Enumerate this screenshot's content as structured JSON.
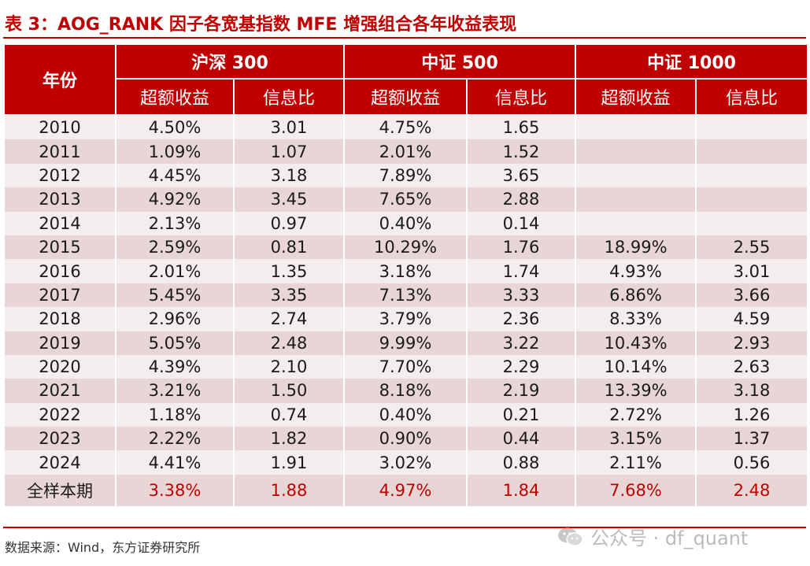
{
  "title": "表 3：AOG_RANK 因子各宽基指数 MFE 增强组合各年收益表现",
  "table": {
    "year_header": "年份",
    "groups": [
      "沪深 300",
      "中证 500",
      "中证 1000"
    ],
    "sub_headers": [
      "超额收益",
      "信息比",
      "超额收益",
      "信息比",
      "超额收益",
      "信息比"
    ],
    "rows": [
      [
        "2010",
        "4.50%",
        "3.01",
        "4.75%",
        "1.65",
        "",
        ""
      ],
      [
        "2011",
        "1.09%",
        "1.07",
        "2.01%",
        "1.52",
        "",
        ""
      ],
      [
        "2012",
        "4.45%",
        "3.18",
        "7.89%",
        "3.65",
        "",
        ""
      ],
      [
        "2013",
        "4.92%",
        "3.45",
        "7.65%",
        "2.88",
        "",
        ""
      ],
      [
        "2014",
        "2.13%",
        "0.97",
        "0.40%",
        "0.14",
        "",
        ""
      ],
      [
        "2015",
        "2.59%",
        "0.81",
        "10.29%",
        "1.76",
        "18.99%",
        "2.55"
      ],
      [
        "2016",
        "2.01%",
        "1.35",
        "3.18%",
        "1.74",
        "4.93%",
        "3.01"
      ],
      [
        "2017",
        "5.45%",
        "3.35",
        "7.13%",
        "3.33",
        "6.86%",
        "3.66"
      ],
      [
        "2018",
        "2.96%",
        "2.74",
        "3.79%",
        "2.36",
        "8.33%",
        "4.59"
      ],
      [
        "2019",
        "5.05%",
        "2.48",
        "9.99%",
        "3.22",
        "10.43%",
        "2.93"
      ],
      [
        "2020",
        "4.39%",
        "2.10",
        "7.70%",
        "2.29",
        "10.14%",
        "2.63"
      ],
      [
        "2021",
        "3.21%",
        "1.50",
        "8.18%",
        "2.19",
        "13.39%",
        "3.18"
      ],
      [
        "2022",
        "1.18%",
        "0.74",
        "0.40%",
        "0.21",
        "2.72%",
        "1.26"
      ],
      [
        "2023",
        "2.22%",
        "1.82",
        "0.90%",
        "0.44",
        "3.15%",
        "1.37"
      ],
      [
        "2024",
        "4.41%",
        "1.91",
        "3.02%",
        "0.88",
        "2.11%",
        "0.56"
      ]
    ],
    "total_row": [
      "全样本期",
      "3.38%",
      "1.88",
      "4.97%",
      "1.84",
      "7.68%",
      "2.48"
    ]
  },
  "source": "数据来源：Wind，东方证券研究所",
  "watermark": "公众号 · df_quant",
  "colors": {
    "accent": "#c00000",
    "row_light": "#f3eded",
    "row_dark": "#e8d6d6"
  }
}
